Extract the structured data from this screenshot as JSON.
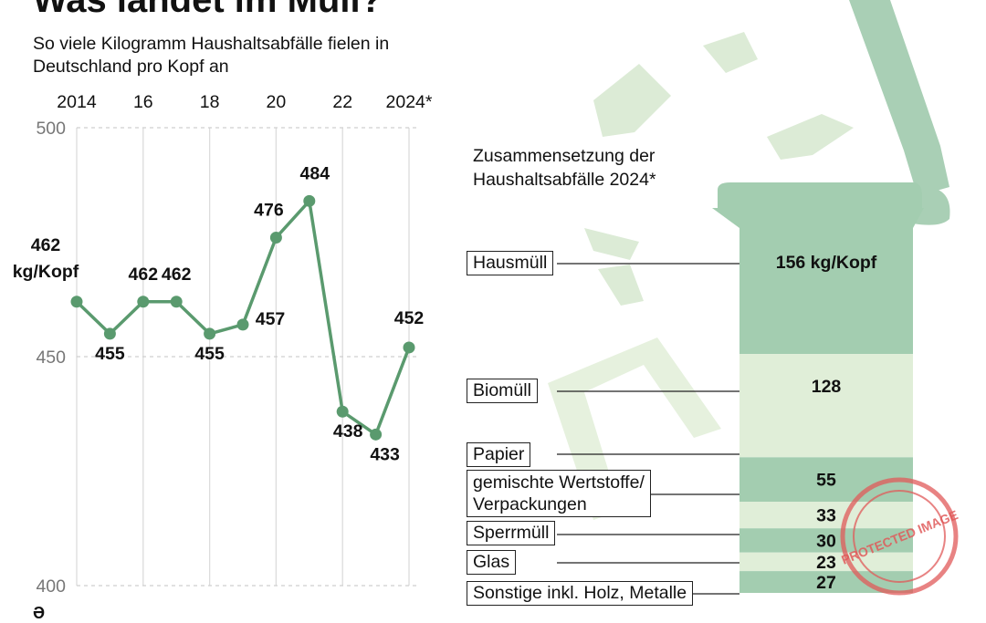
{
  "title": "Was landet im Müll?",
  "subtitle": "So viele Kilogramm Haushaltsabfälle fielen in Deutschland pro Kopf an",
  "chart_data": [
    {
      "type": "line",
      "x": [
        2014,
        2015,
        2016,
        2017,
        2018,
        2019,
        2020,
        2021,
        2022,
        2023,
        2024
      ],
      "values": [
        462,
        455,
        462,
        462,
        455,
        457,
        476,
        484,
        438,
        433,
        452
      ],
      "point_labels": [
        "462\nkg/Kopf",
        "455",
        "462",
        "462",
        "455",
        "457",
        "476",
        "484",
        "438",
        "433",
        "452"
      ],
      "x_tick_labels": [
        {
          "year": 2014,
          "label": "2014"
        },
        {
          "year": 2016,
          "label": "16"
        },
        {
          "year": 2018,
          "label": "18"
        },
        {
          "year": 2020,
          "label": "20"
        },
        {
          "year": 2022,
          "label": "22"
        },
        {
          "year": 2024,
          "label": "2024*"
        }
      ],
      "y_ticks": [
        500,
        450,
        400
      ],
      "ylim": [
        400,
        500
      ],
      "xlim": [
        2014,
        2024
      ],
      "ylabel": "kg/Kopf",
      "color": "#5a9a6e"
    },
    {
      "type": "bar",
      "title": "Zusammensetzung der Haushaltsabfälle 2024*",
      "categories": [
        "Hausmüll",
        "Biomüll",
        "Papier",
        "gemischte Wertstoffe/ Verpackungen",
        "Sperrmüll",
        "Glas",
        "Sonstige inkl. Holz, Metalle"
      ],
      "category_lines": [
        [
          "Hausmüll"
        ],
        [
          "Biomüll"
        ],
        [
          "Papier"
        ],
        [
          "gemischte Wertstoffe/",
          "Verpackungen"
        ],
        [
          "Sperrmüll"
        ],
        [
          "Glas"
        ],
        [
          "Sonstige inkl. Holz, Metalle"
        ]
      ],
      "values": [
        156,
        128,
        55,
        33,
        30,
        23,
        27
      ],
      "value_labels": [
        "156 kg/Kopf",
        "128",
        "55",
        "33",
        "30",
        "23",
        "27"
      ],
      "unit": "kg/Kopf",
      "colors": [
        "#a3cdb0",
        "#e0eed8",
        "#a3cdb0",
        "#e0eed8",
        "#a3cdb0",
        "#e0eed8",
        "#a3cdb0"
      ]
    }
  ],
  "stamp_text": "PROTECTED IMAGE",
  "colors": {
    "line": "#5a9a6e",
    "dark_band": "#a3cdb0",
    "light_band": "#e0eed8",
    "deco": "#dcebd6",
    "stamp": "#e05a5a"
  }
}
